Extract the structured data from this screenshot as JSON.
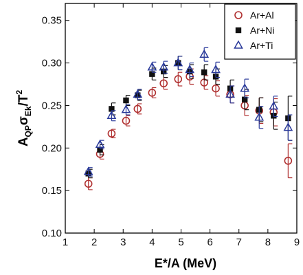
{
  "chart_data": {
    "type": "scatter",
    "xlabel": "E*/A (MeV)",
    "ylabel": {
      "base": "A",
      "sub1": "QP",
      "sigma": "σ",
      "sub2": "Ek",
      "slash": "/T",
      "sup": "2"
    },
    "xlim": [
      1,
      9
    ],
    "ylim": [
      0.1,
      0.37
    ],
    "x_ticks": [
      1,
      2,
      3,
      4,
      5,
      6,
      7,
      8,
      9
    ],
    "x_tick_labels": [
      "1",
      "2",
      "3",
      "4",
      "5",
      "6",
      "7",
      "8",
      "9"
    ],
    "y_ticks": [
      0.1,
      0.15,
      0.2,
      0.25,
      0.3,
      0.35
    ],
    "y_tick_labels": [
      "0.10",
      "0.15",
      "0.20",
      "0.25",
      "0.30",
      "0.35"
    ],
    "grid": false,
    "legend_position": "top-right",
    "series": [
      {
        "name": "Ar+Al",
        "marker": "circle-open",
        "color": "#b03030",
        "x": [
          1.8,
          2.2,
          2.6,
          3.1,
          3.5,
          4.0,
          4.4,
          4.9,
          5.3,
          5.8,
          6.2,
          6.7,
          7.2,
          7.7,
          8.2,
          8.7
        ],
        "y": [
          0.158,
          0.193,
          0.217,
          0.232,
          0.246,
          0.265,
          0.276,
          0.281,
          0.284,
          0.277,
          0.27,
          0.263,
          0.25,
          0.244,
          0.242,
          0.185
        ],
        "err": [
          0.007,
          0.006,
          0.005,
          0.006,
          0.006,
          0.006,
          0.007,
          0.008,
          0.009,
          0.008,
          0.009,
          0.01,
          0.012,
          0.015,
          0.016,
          0.02
        ]
      },
      {
        "name": "Ar+Ni",
        "marker": "square-filled",
        "color": "#111111",
        "x": [
          1.8,
          2.2,
          2.6,
          3.1,
          3.5,
          4.0,
          4.4,
          4.9,
          5.3,
          5.8,
          6.2,
          6.7,
          7.2,
          7.7,
          8.2,
          8.7
        ],
        "y": [
          0.17,
          0.198,
          0.246,
          0.256,
          0.262,
          0.287,
          0.29,
          0.3,
          0.29,
          0.289,
          0.284,
          0.27,
          0.257,
          0.245,
          0.238,
          0.235
        ],
        "err": [
          0.005,
          0.006,
          0.007,
          0.006,
          0.006,
          0.007,
          0.007,
          0.008,
          0.008,
          0.009,
          0.009,
          0.01,
          0.012,
          0.014,
          0.016,
          0.026
        ]
      },
      {
        "name": "Ar+Ti",
        "marker": "triangle-open",
        "color": "#2a3a9a",
        "x": [
          1.8,
          2.2,
          2.6,
          3.1,
          3.5,
          4.0,
          4.4,
          4.9,
          5.3,
          5.8,
          6.2,
          6.7,
          7.2,
          7.7,
          8.2,
          8.7
        ],
        "y": [
          0.172,
          0.204,
          0.238,
          0.245,
          0.263,
          0.295,
          0.295,
          0.3,
          0.292,
          0.31,
          0.292,
          0.263,
          0.27,
          0.236,
          0.249,
          0.224
        ],
        "err": [
          0.005,
          0.005,
          0.006,
          0.006,
          0.006,
          0.006,
          0.007,
          0.008,
          0.008,
          0.008,
          0.009,
          0.01,
          0.011,
          0.013,
          0.012,
          0.015
        ]
      }
    ]
  }
}
